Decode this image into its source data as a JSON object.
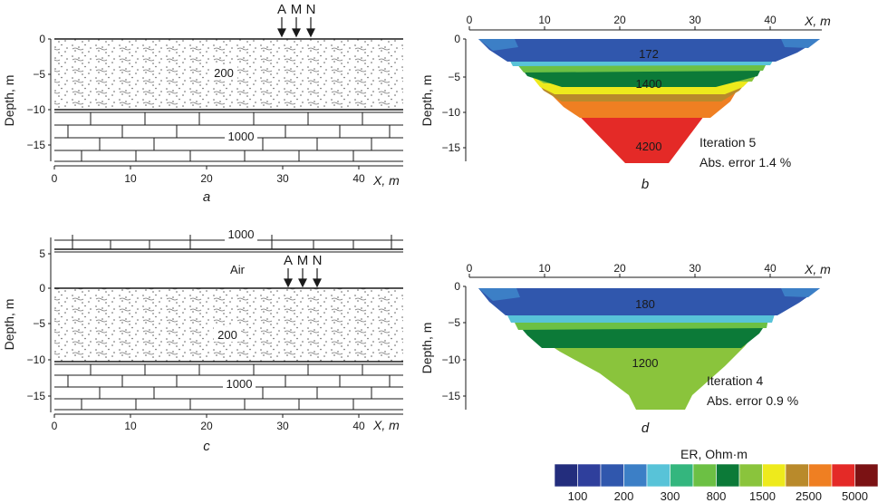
{
  "colors": {
    "scale": [
      "#232d7d",
      "#2f3f9c",
      "#3057ad",
      "#3c7fc6",
      "#58c3d8",
      "#34b67e",
      "#6cc044",
      "#0c7a38",
      "#8ac43c",
      "#eeea1c",
      "#b98a2b",
      "#ef7f22",
      "#e42a27",
      "#7b1214"
    ],
    "sand_bg": "#ffffff",
    "ink": "#1a1a1a"
  },
  "icons": {
    "electrode_arrow": "down-arrow-icon"
  },
  "panel_a": {
    "letter": "a",
    "ylabel": "Depth, m",
    "xlabel": "X, m",
    "yticks": [
      "0",
      "−5",
      "−10",
      "−15"
    ],
    "xticks": [
      "0",
      "10",
      "20",
      "30",
      "40"
    ],
    "electrodes": [
      "A",
      "M",
      "N"
    ],
    "sand_value": "200",
    "rock_value": "1000"
  },
  "panel_c": {
    "letter": "c",
    "ylabel": "Depth, m",
    "xlabel": "X, m",
    "yticks": [
      "5",
      "0",
      "−5",
      "−10",
      "−15"
    ],
    "xticks": [
      "0",
      "10",
      "20",
      "30",
      "40"
    ],
    "electrodes": [
      "A",
      "M",
      "N"
    ],
    "air_label": "Air",
    "top_rock_value": "1000",
    "sand_value": "200",
    "rock_value": "1000"
  },
  "chart_data": [
    {
      "type": "heatmap",
      "panel": "b",
      "xlabel": "X, m",
      "ylabel": "Depth, m",
      "xticks": [
        "0",
        "10",
        "20",
        "30",
        "40"
      ],
      "yticks": [
        "0",
        "−5",
        "−10",
        "−15"
      ],
      "xlim": [
        0,
        45
      ],
      "ylim": [
        -17,
        0
      ],
      "value_labels": [
        {
          "text": "172",
          "x": 24,
          "y": -2
        },
        {
          "text": "1400",
          "x": 24,
          "y": -7.5
        },
        {
          "text": "4200",
          "x": 24,
          "y": -14.5
        }
      ],
      "annotation": [
        "Iteration 5",
        "Abs. error 1.4 %"
      ]
    },
    {
      "type": "heatmap",
      "panel": "d",
      "xlabel": "X, m",
      "ylabel": "Depth, m",
      "xticks": [
        "0",
        "10",
        "20",
        "30",
        "40"
      ],
      "yticks": [
        "0",
        "−5",
        "−10",
        "−15"
      ],
      "xlim": [
        0,
        45
      ],
      "ylim": [
        -17,
        0
      ],
      "value_labels": [
        {
          "text": "180",
          "x": 24,
          "y": -2
        },
        {
          "text": "1200",
          "x": 24,
          "y": -10.5
        }
      ],
      "annotation": [
        "Iteration 4",
        "Abs. error 0.9 %"
      ]
    },
    {
      "type": "colorbar",
      "title": "ER, Ohm·m",
      "tick_labels": [
        "100",
        "200",
        "300",
        "800",
        "1500",
        "2500",
        "5000"
      ]
    }
  ]
}
